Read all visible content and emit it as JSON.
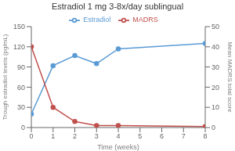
{
  "chart_data": {
    "type": "line",
    "title": "Estradiol 1 mg 3-8x/day sublingual",
    "x_label": "Time (weeks)",
    "y_label": "Trough estradiol levels (pg/mL)",
    "y2_label": "Mean MADRS total score",
    "x": [
      0,
      1,
      2,
      3,
      4,
      8
    ],
    "series": [
      {
        "name": "Estradiol",
        "color": "#5B9BD5",
        "marker": "circle",
        "values": [
          20,
          92,
          107,
          95,
          117,
          125
        ]
      },
      {
        "name": "MADRS",
        "color": "#C0504D",
        "marker": "circle",
        "axis": "y2",
        "values": [
          40,
          10,
          3,
          1,
          1,
          0.5
        ]
      }
    ],
    "xlim": [
      0,
      8
    ],
    "xticks": [
      0,
      1,
      2,
      3,
      4,
      5,
      6,
      7,
      8
    ],
    "ylim": [
      0,
      150
    ],
    "yticks": [
      0,
      30,
      60,
      90,
      120,
      150
    ],
    "y2lim": [
      0,
      50
    ],
    "y2ticks": [
      0,
      10,
      20,
      30,
      40,
      50
    ],
    "legend": "top",
    "grid": false
  }
}
